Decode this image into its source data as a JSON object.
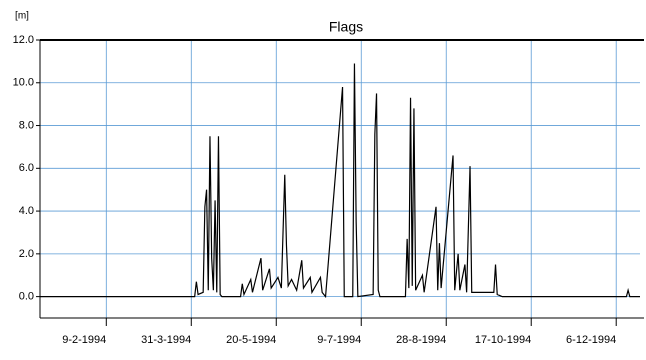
{
  "chart_data": {
    "type": "line",
    "title": "Flags",
    "y_label": "[m]",
    "x": [
      "1994-01-01",
      "1994-03-27",
      "1994-04-02",
      "1994-04-03",
      "1994-04-04",
      "1994-04-07",
      "1994-04-08",
      "1994-04-09",
      "1994-04-10",
      "1994-04-11",
      "1994-04-12",
      "1994-04-13",
      "1994-04-14",
      "1994-04-15",
      "1994-04-16",
      "1994-04-17",
      "1994-04-18",
      "1994-04-29",
      "1994-04-30",
      "1994-05-01",
      "1994-05-05",
      "1994-05-06",
      "1994-05-11",
      "1994-05-12",
      "1994-05-16",
      "1994-05-17",
      "1994-05-21",
      "1994-05-23",
      "1994-05-25",
      "1994-05-26",
      "1994-05-27",
      "1994-05-29",
      "1994-06-01",
      "1994-06-04",
      "1994-06-05",
      "1994-06-09",
      "1994-06-10",
      "1994-06-15",
      "1994-06-16",
      "1994-06-18",
      "1994-06-28",
      "1994-06-29",
      "1994-07-04",
      "1994-07-05",
      "1994-07-06",
      "1994-07-07",
      "1994-07-16",
      "1994-07-17",
      "1994-07-18",
      "1994-07-19",
      "1994-07-20",
      "1994-08-04",
      "1994-08-05",
      "1994-08-06",
      "1994-08-07",
      "1994-08-08",
      "1994-08-09",
      "1994-08-10",
      "1994-08-14",
      "1994-08-15",
      "1994-08-22",
      "1994-08-23",
      "1994-08-24",
      "1994-08-25",
      "1994-09-01",
      "1994-09-02",
      "1994-09-04",
      "1994-09-05",
      "1994-09-08",
      "1994-09-09",
      "1994-09-11",
      "1994-09-12",
      "1994-09-25",
      "1994-09-26",
      "1994-09-27",
      "1994-09-30",
      "1994-12-12",
      "1994-12-13",
      "1994-12-14",
      "1994-12-20"
    ],
    "series": [
      {
        "name": "Flags",
        "color": "#000000",
        "values": [
          0,
          0,
          0,
          0.7,
          0.1,
          0.2,
          4.2,
          5.0,
          0.3,
          7.5,
          1.8,
          0.3,
          4.5,
          0.2,
          7.5,
          0.1,
          0,
          0,
          0.6,
          0.1,
          0.8,
          0.2,
          1.8,
          0.3,
          1.3,
          0.4,
          0.9,
          0.4,
          5.7,
          2.4,
          0.5,
          0.8,
          0.3,
          1.7,
          0.4,
          0.9,
          0.2,
          0.9,
          0.2,
          0,
          9.8,
          0,
          0,
          10.9,
          3.5,
          0,
          0.1,
          7.6,
          9.5,
          0.3,
          0,
          0,
          2.7,
          0.4,
          9.3,
          0.5,
          8.8,
          0.3,
          1.0,
          0.2,
          4.2,
          0.3,
          2.5,
          0.4,
          6.6,
          0.3,
          2.0,
          0.3,
          1.5,
          0.2,
          6.1,
          0.2,
          0.2,
          1.5,
          0.1,
          0,
          0,
          0.3,
          0,
          0
        ]
      }
    ],
    "xlim": [
      "1994-01-01",
      "1994-12-20"
    ],
    "xticks": [
      {
        "value": "1994-02-09",
        "label": "9-2-1994"
      },
      {
        "value": "1994-03-31",
        "label": "31-3-1994"
      },
      {
        "value": "1994-05-20",
        "label": "20-5-1994"
      },
      {
        "value": "1994-07-09",
        "label": "9-7-1994"
      },
      {
        "value": "1994-08-28",
        "label": "28-8-1994"
      },
      {
        "value": "1994-10-17",
        "label": "17-10-1994"
      },
      {
        "value": "1994-12-06",
        "label": "6-12-1994"
      }
    ],
    "ylim": [
      -1,
      12
    ],
    "yticks": [
      {
        "value": 0,
        "label": "0.0"
      },
      {
        "value": 2,
        "label": "2.0"
      },
      {
        "value": 4,
        "label": "4.0"
      },
      {
        "value": 6,
        "label": "6.0"
      },
      {
        "value": 8,
        "label": "8.0"
      },
      {
        "value": 10,
        "label": "10.0"
      },
      {
        "value": 12,
        "label": "12.0"
      }
    ],
    "grid": true,
    "grid_color": "#5b9bd5"
  }
}
